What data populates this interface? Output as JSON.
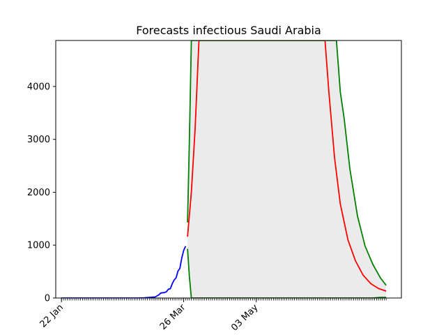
{
  "chart_data": {
    "type": "line",
    "title": "Forecasts infectious Saudi Arabia",
    "xlabel": "",
    "ylabel": "",
    "x_axis_type": "date",
    "x_range": [
      "2020-01-19",
      "2020-07-18"
    ],
    "ylim": [
      0,
      4870
    ],
    "y_ticks": [
      0,
      1000,
      2000,
      3000,
      4000
    ],
    "x_tick_labels": [
      {
        "date": "2020-01-22",
        "label": "22 Jan"
      },
      {
        "date": "2020-03-26",
        "label": "26 Mar"
      },
      {
        "date": "2020-05-03",
        "label": "03 May"
      }
    ],
    "grid": false,
    "legend": "none",
    "colors": {
      "observed": "#0000ff",
      "forecast": "#ff0000",
      "bounds": "#008000",
      "band": "#ebebeb"
    },
    "series": [
      {
        "role": "observed",
        "points": [
          [
            "2020-01-22",
            0
          ],
          [
            "2020-02-20",
            0
          ],
          [
            "2020-03-02",
            0
          ],
          [
            "2020-03-05",
            3
          ],
          [
            "2020-03-08",
            11
          ],
          [
            "2020-03-11",
            20
          ],
          [
            "2020-03-13",
            60
          ],
          [
            "2020-03-14",
            95
          ],
          [
            "2020-03-16",
            103
          ],
          [
            "2020-03-17",
            120
          ],
          [
            "2020-03-18",
            168
          ],
          [
            "2020-03-19",
            175
          ],
          [
            "2020-03-20",
            270
          ],
          [
            "2020-03-21",
            340
          ],
          [
            "2020-03-22",
            380
          ],
          [
            "2020-03-23",
            510
          ],
          [
            "2020-03-24",
            560
          ],
          [
            "2020-03-25",
            760
          ],
          [
            "2020-03-26",
            900
          ],
          [
            "2020-03-27",
            980
          ]
        ]
      },
      {
        "role": "forecast",
        "points": [
          [
            "2020-03-28",
            1160
          ],
          [
            "2020-03-30",
            2000
          ],
          [
            "2020-04-01",
            3200
          ],
          [
            "2020-04-03",
            4870
          ],
          [
            "2020-06-08",
            4870
          ],
          [
            "2020-06-10",
            3900
          ],
          [
            "2020-06-13",
            2650
          ],
          [
            "2020-06-16",
            1780
          ],
          [
            "2020-06-20",
            1100
          ],
          [
            "2020-06-24",
            700
          ],
          [
            "2020-06-28",
            430
          ],
          [
            "2020-07-02",
            270
          ],
          [
            "2020-07-06",
            180
          ],
          [
            "2020-07-10",
            130
          ]
        ]
      },
      {
        "role": "upper_bound",
        "points": [
          [
            "2020-03-28",
            1430
          ],
          [
            "2020-03-29",
            3000
          ],
          [
            "2020-03-30",
            4870
          ],
          [
            "2020-06-14",
            4870
          ],
          [
            "2020-06-16",
            3900
          ],
          [
            "2020-06-18",
            3400
          ],
          [
            "2020-06-21",
            2450
          ],
          [
            "2020-06-25",
            1550
          ],
          [
            "2020-06-29",
            980
          ],
          [
            "2020-07-03",
            640
          ],
          [
            "2020-07-07",
            380
          ],
          [
            "2020-07-10",
            240
          ]
        ]
      },
      {
        "role": "lower_bound",
        "points": [
          [
            "2020-03-28",
            930
          ],
          [
            "2020-03-29",
            400
          ],
          [
            "2020-03-30",
            0
          ],
          [
            "2020-07-03",
            0
          ],
          [
            "2020-07-07",
            10
          ],
          [
            "2020-07-10",
            12
          ]
        ]
      }
    ],
    "band": {
      "role": "confidence_band",
      "upper": [
        [
          "2020-03-28",
          1430
        ],
        [
          "2020-03-29",
          3000
        ],
        [
          "2020-03-30",
          4870
        ],
        [
          "2020-06-14",
          4870
        ],
        [
          "2020-06-16",
          3900
        ],
        [
          "2020-06-18",
          3400
        ],
        [
          "2020-06-21",
          2450
        ],
        [
          "2020-06-25",
          1550
        ],
        [
          "2020-06-29",
          980
        ],
        [
          "2020-07-03",
          640
        ],
        [
          "2020-07-07",
          380
        ],
        [
          "2020-07-10",
          240
        ]
      ],
      "lower": [
        [
          "2020-03-28",
          930
        ],
        [
          "2020-03-29",
          400
        ],
        [
          "2020-03-30",
          0
        ],
        [
          "2020-07-03",
          0
        ],
        [
          "2020-07-07",
          10
        ],
        [
          "2020-07-10",
          12
        ]
      ]
    }
  }
}
